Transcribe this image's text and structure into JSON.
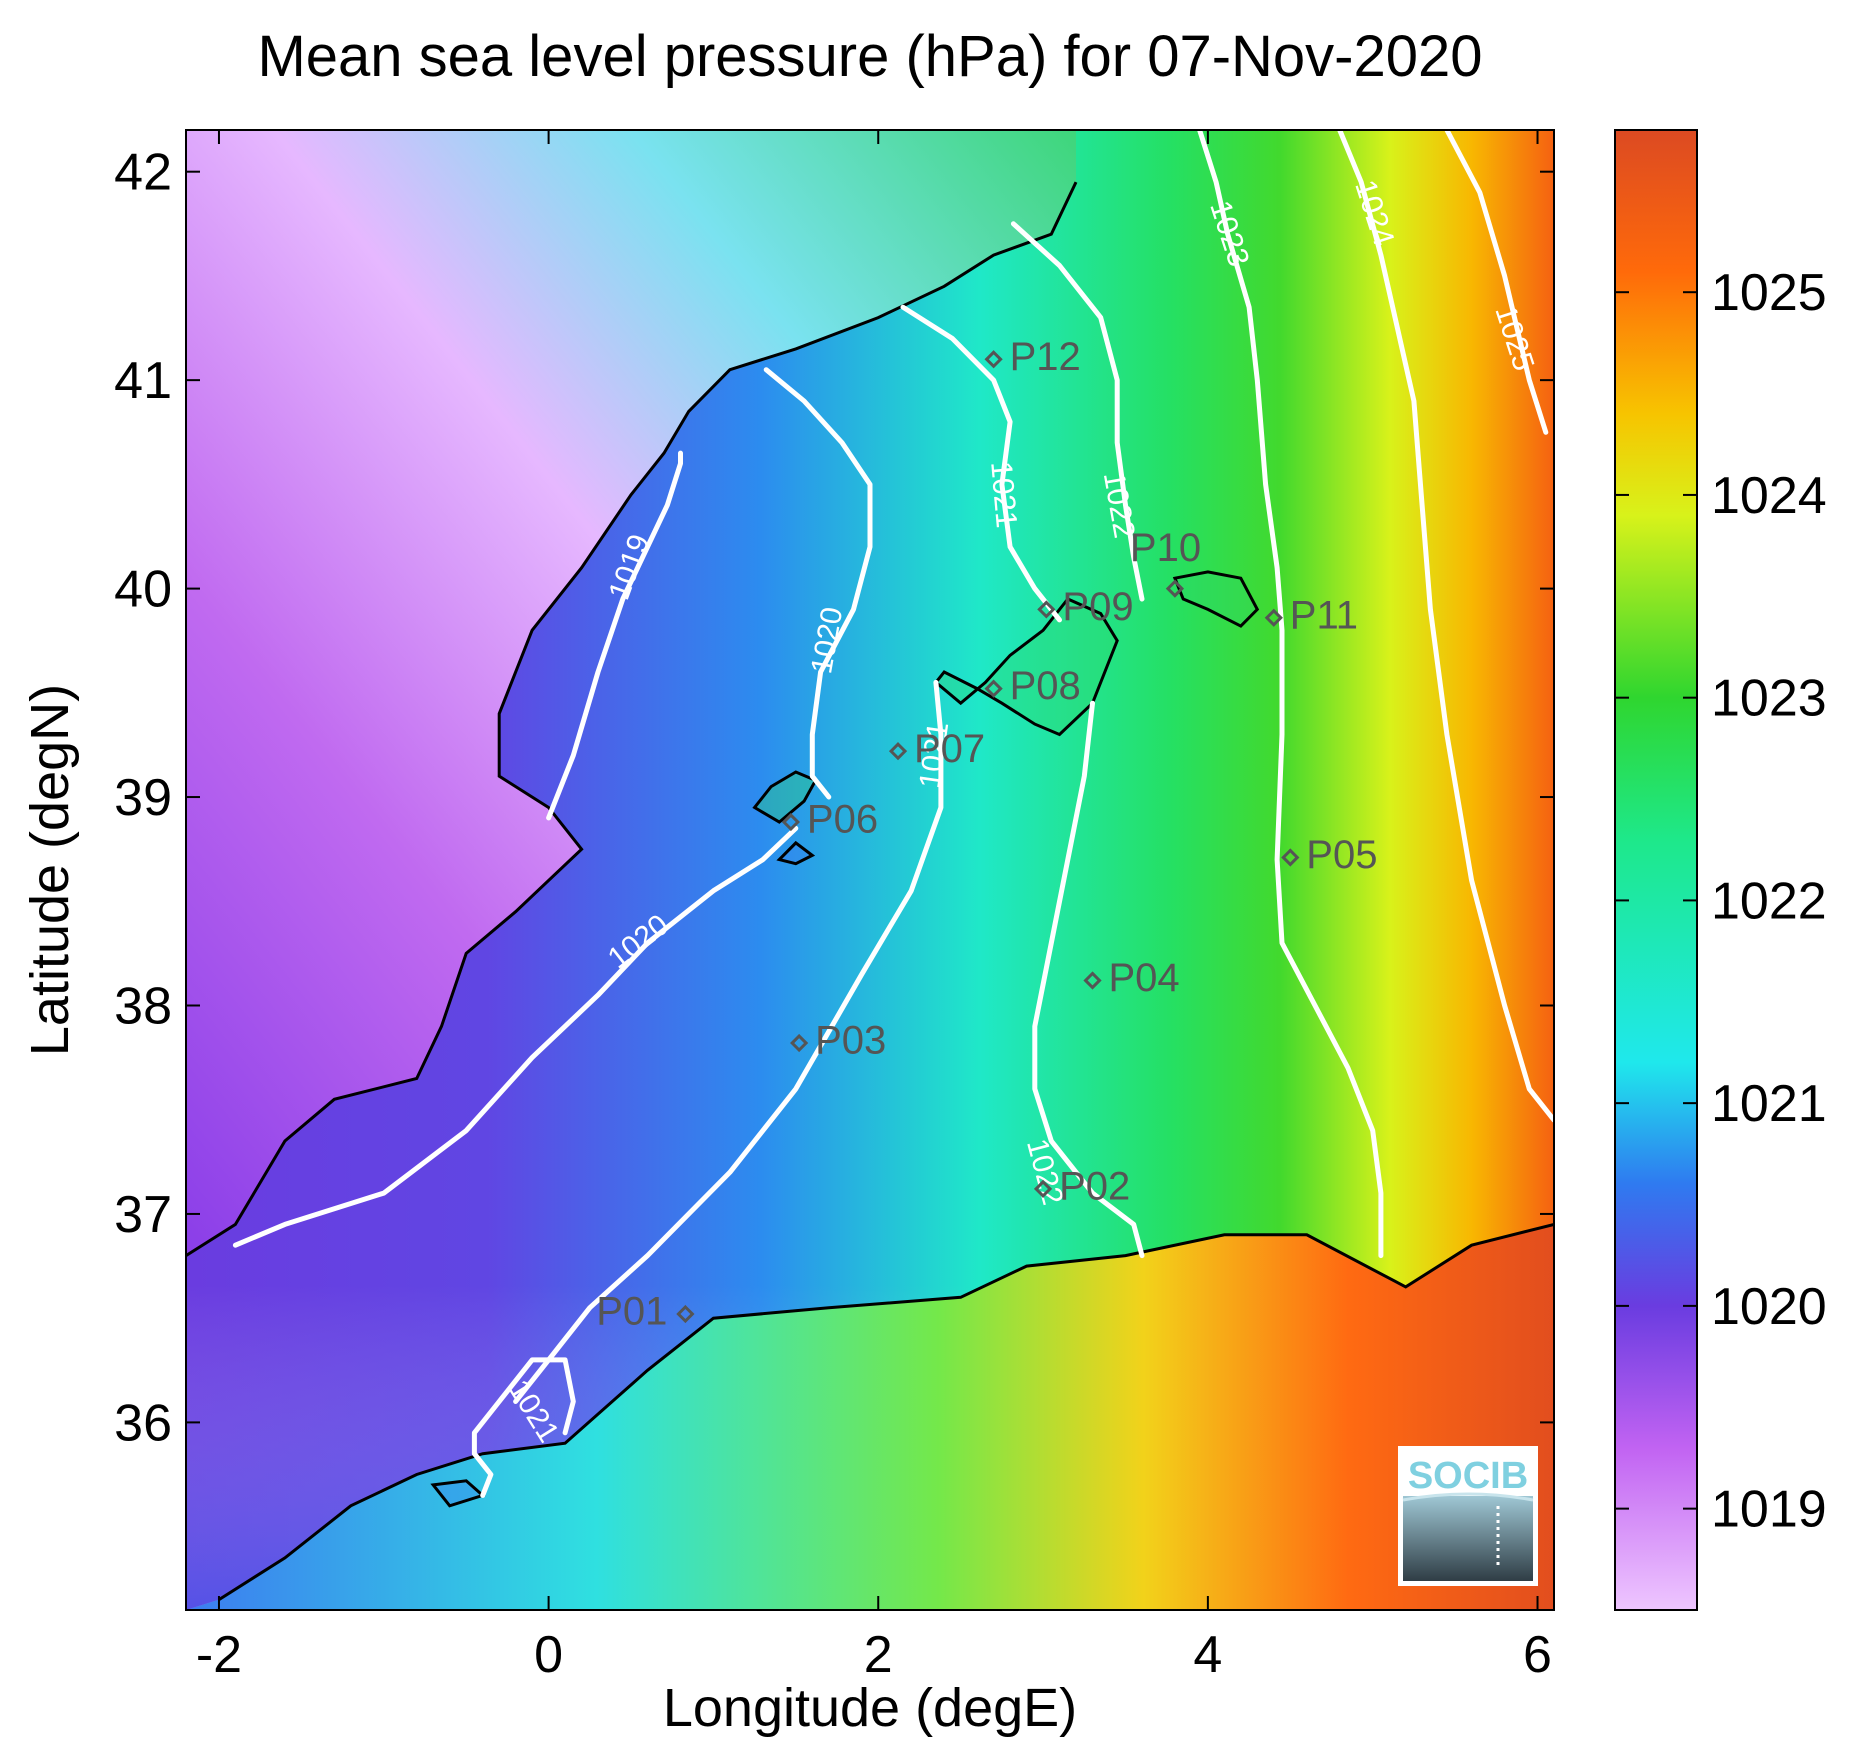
{
  "title": "Mean sea level pressure (hPa) for 07-Nov-2020",
  "colors": {
    "land": "#b06ee8",
    "coast": "#000000",
    "contour": "#ffffff",
    "station": "#555555",
    "logo_text": "#7fd0e0"
  },
  "chart_data": {
    "type": "heatmap",
    "xlabel": "Longitude (degE)",
    "ylabel": "Latitude (degN)",
    "xlim": [
      -2.2,
      6.1
    ],
    "ylim": [
      35.1,
      42.2
    ],
    "xticks": [
      {
        "value": -2,
        "label": "-2"
      },
      {
        "value": 0,
        "label": "0"
      },
      {
        "value": 2,
        "label": "2"
      },
      {
        "value": 4,
        "label": "4"
      },
      {
        "value": 6,
        "label": "6"
      }
    ],
    "yticks": [
      {
        "value": 36,
        "label": "36"
      },
      {
        "value": 37,
        "label": "37"
      },
      {
        "value": 38,
        "label": "38"
      },
      {
        "value": 39,
        "label": "39"
      },
      {
        "value": 40,
        "label": "40"
      },
      {
        "value": 41,
        "label": "41"
      },
      {
        "value": 42,
        "label": "42"
      }
    ],
    "colorbar": {
      "range": [
        1018.5,
        1025.8
      ],
      "ticks": [
        {
          "value": 1019,
          "label": "1019"
        },
        {
          "value": 1020,
          "label": "1020"
        },
        {
          "value": 1021,
          "label": "1021"
        },
        {
          "value": 1022,
          "label": "1022"
        },
        {
          "value": 1023,
          "label": "1023"
        },
        {
          "value": 1024,
          "label": "1024"
        },
        {
          "value": 1025,
          "label": "1025"
        }
      ],
      "stops": [
        {
          "value": 1018.5,
          "color": "#eec6ff"
        },
        {
          "value": 1019.3,
          "color": "#c163f2"
        },
        {
          "value": 1020.0,
          "color": "#6a3ce0"
        },
        {
          "value": 1020.6,
          "color": "#2f7af0"
        },
        {
          "value": 1021.2,
          "color": "#1fe8ec"
        },
        {
          "value": 1022.3,
          "color": "#1ee88a"
        },
        {
          "value": 1023.0,
          "color": "#2fd62f"
        },
        {
          "value": 1023.9,
          "color": "#d8f21a"
        },
        {
          "value": 1024.4,
          "color": "#f7c400"
        },
        {
          "value": 1025.1,
          "color": "#ff6a0a"
        },
        {
          "value": 1025.8,
          "color": "#dc4a22"
        }
      ]
    },
    "contours": [
      {
        "level": 1019,
        "label": "1019",
        "label_at": [
          0.5,
          40.1
        ],
        "label_angle": -70,
        "points": [
          [
            0.0,
            38.9
          ],
          [
            0.15,
            39.2
          ],
          [
            0.3,
            39.6
          ],
          [
            0.45,
            39.95
          ],
          [
            0.6,
            40.2
          ],
          [
            0.72,
            40.4
          ],
          [
            0.8,
            40.6
          ],
          [
            0.8,
            40.65
          ]
        ]
      },
      {
        "level": 1020,
        "label": "1020",
        "label_at": [
          1.7,
          39.75
        ],
        "label_angle": -80,
        "points": [
          [
            1.32,
            41.05
          ],
          [
            1.55,
            40.9
          ],
          [
            1.78,
            40.7
          ],
          [
            1.95,
            40.5
          ],
          [
            1.95,
            40.2
          ],
          [
            1.85,
            39.9
          ],
          [
            1.65,
            39.6
          ],
          [
            1.6,
            39.3
          ],
          [
            1.6,
            39.1
          ],
          [
            1.7,
            39.0
          ]
        ]
      },
      {
        "level": 1020,
        "label": "1020",
        "label_at": [
          0.55,
          38.3
        ],
        "label_angle": -38,
        "points": [
          [
            1.5,
            38.85
          ],
          [
            1.3,
            38.7
          ],
          [
            1.0,
            38.55
          ],
          [
            0.6,
            38.3
          ],
          [
            0.3,
            38.05
          ],
          [
            -0.1,
            37.75
          ],
          [
            -0.5,
            37.4
          ],
          [
            -1.0,
            37.1
          ],
          [
            -1.6,
            36.95
          ],
          [
            -1.9,
            36.85
          ]
        ]
      },
      {
        "level": 1021,
        "label": "1021",
        "label_at": [
          2.35,
          39.2
        ],
        "label_angle": -82,
        "points": [
          [
            2.35,
            39.55
          ],
          [
            2.38,
            39.3
          ],
          [
            2.38,
            38.95
          ],
          [
            2.2,
            38.55
          ],
          [
            1.9,
            38.15
          ],
          [
            1.5,
            37.6
          ],
          [
            1.1,
            37.2
          ],
          [
            0.6,
            36.8
          ],
          [
            0.25,
            36.55
          ],
          [
            0.0,
            36.3
          ],
          [
            -0.2,
            36.1
          ]
        ]
      },
      {
        "level": 1021,
        "label": "1021",
        "label_at": [
          -0.1,
          36.05
        ],
        "label_angle": 58,
        "points": [
          [
            0.1,
            35.95
          ],
          [
            0.15,
            36.1
          ],
          [
            0.1,
            36.3
          ],
          [
            -0.1,
            36.3
          ],
          [
            -0.3,
            36.1
          ],
          [
            -0.45,
            35.95
          ],
          [
            -0.45,
            35.85
          ],
          [
            -0.35,
            35.75
          ],
          [
            -0.4,
            35.65
          ]
        ]
      },
      {
        "level": 1021,
        "label": "1021",
        "label_at": [
          2.75,
          40.45
        ],
        "label_angle": 85,
        "points": [
          [
            2.15,
            41.35
          ],
          [
            2.45,
            41.2
          ],
          [
            2.7,
            41.0
          ],
          [
            2.8,
            40.8
          ],
          [
            2.75,
            40.5
          ],
          [
            2.8,
            40.2
          ],
          [
            2.95,
            40.0
          ],
          [
            3.1,
            39.85
          ]
        ]
      },
      {
        "level": 1022,
        "label": "1022",
        "label_at": [
          3.45,
          40.4
        ],
        "label_angle": 80,
        "points": [
          [
            2.82,
            41.75
          ],
          [
            3.1,
            41.55
          ],
          [
            3.35,
            41.3
          ],
          [
            3.45,
            41.0
          ],
          [
            3.45,
            40.7
          ],
          [
            3.5,
            40.4
          ],
          [
            3.55,
            40.15
          ],
          [
            3.6,
            39.95
          ]
        ]
      },
      {
        "level": 1022,
        "label": "1022",
        "label_at": [
          3.0,
          37.2
        ],
        "label_angle": 75,
        "points": [
          [
            3.3,
            39.45
          ],
          [
            3.25,
            39.1
          ],
          [
            3.15,
            38.7
          ],
          [
            3.05,
            38.3
          ],
          [
            2.95,
            37.9
          ],
          [
            2.95,
            37.6
          ],
          [
            3.05,
            37.35
          ],
          [
            3.3,
            37.1
          ],
          [
            3.55,
            36.95
          ],
          [
            3.6,
            36.8
          ]
        ]
      },
      {
        "level": 1023,
        "label": "1023",
        "label_at": [
          4.12,
          41.7
        ],
        "label_angle": 72,
        "points": [
          [
            3.95,
            42.2
          ],
          [
            4.05,
            41.95
          ],
          [
            4.12,
            41.7
          ],
          [
            4.25,
            41.35
          ],
          [
            4.3,
            41.0
          ],
          [
            4.35,
            40.5
          ],
          [
            4.42,
            40.1
          ],
          [
            4.45,
            39.8
          ],
          [
            4.45,
            39.3
          ],
          [
            4.42,
            38.7
          ],
          [
            4.45,
            38.3
          ],
          [
            4.65,
            38.0
          ],
          [
            4.85,
            37.7
          ],
          [
            5.0,
            37.4
          ],
          [
            5.05,
            37.1
          ],
          [
            5.05,
            36.8
          ]
        ]
      },
      {
        "level": 1024,
        "label": "1024",
        "label_at": [
          5.0,
          41.8
        ],
        "label_angle": 72,
        "points": [
          [
            4.8,
            42.2
          ],
          [
            4.93,
            41.95
          ],
          [
            5.05,
            41.6
          ],
          [
            5.15,
            41.25
          ],
          [
            5.25,
            40.9
          ],
          [
            5.3,
            40.4
          ],
          [
            5.35,
            39.9
          ],
          [
            5.45,
            39.3
          ],
          [
            5.6,
            38.6
          ],
          [
            5.8,
            38.0
          ],
          [
            5.95,
            37.6
          ],
          [
            6.1,
            37.45
          ]
        ]
      },
      {
        "level": 1025,
        "label": "1025",
        "label_at": [
          5.85,
          41.2
        ],
        "label_angle": 72,
        "points": [
          [
            5.45,
            42.2
          ],
          [
            5.65,
            41.9
          ],
          [
            5.8,
            41.5
          ],
          [
            5.95,
            41.0
          ],
          [
            6.05,
            40.75
          ]
        ]
      }
    ],
    "stations": [
      {
        "label": "P01",
        "lon": 0.83,
        "lat": 36.52,
        "label_side": "left"
      },
      {
        "label": "P02",
        "lon": 3.0,
        "lat": 37.12,
        "label_side": "right"
      },
      {
        "label": "P03",
        "lon": 1.52,
        "lat": 37.82,
        "label_side": "right"
      },
      {
        "label": "P04",
        "lon": 3.3,
        "lat": 38.12,
        "label_side": "right"
      },
      {
        "label": "P05",
        "lon": 4.5,
        "lat": 38.71,
        "label_side": "right"
      },
      {
        "label": "P06",
        "lon": 1.47,
        "lat": 38.88,
        "label_side": "right"
      },
      {
        "label": "P07",
        "lon": 2.12,
        "lat": 39.22,
        "label_side": "right"
      },
      {
        "label": "P08",
        "lon": 2.7,
        "lat": 39.52,
        "label_side": "right"
      },
      {
        "label": "P09",
        "lon": 3.02,
        "lat": 39.9,
        "label_side": "right"
      },
      {
        "label": "P10",
        "lon": 3.8,
        "lat": 40.0,
        "label_side": "up-left"
      },
      {
        "label": "P11",
        "lon": 4.4,
        "lat": 39.86,
        "label_side": "right"
      },
      {
        "label": "P12",
        "lon": 2.7,
        "lat": 41.1,
        "label_side": "right"
      }
    ]
  },
  "logo": {
    "text": "SOCIB"
  }
}
